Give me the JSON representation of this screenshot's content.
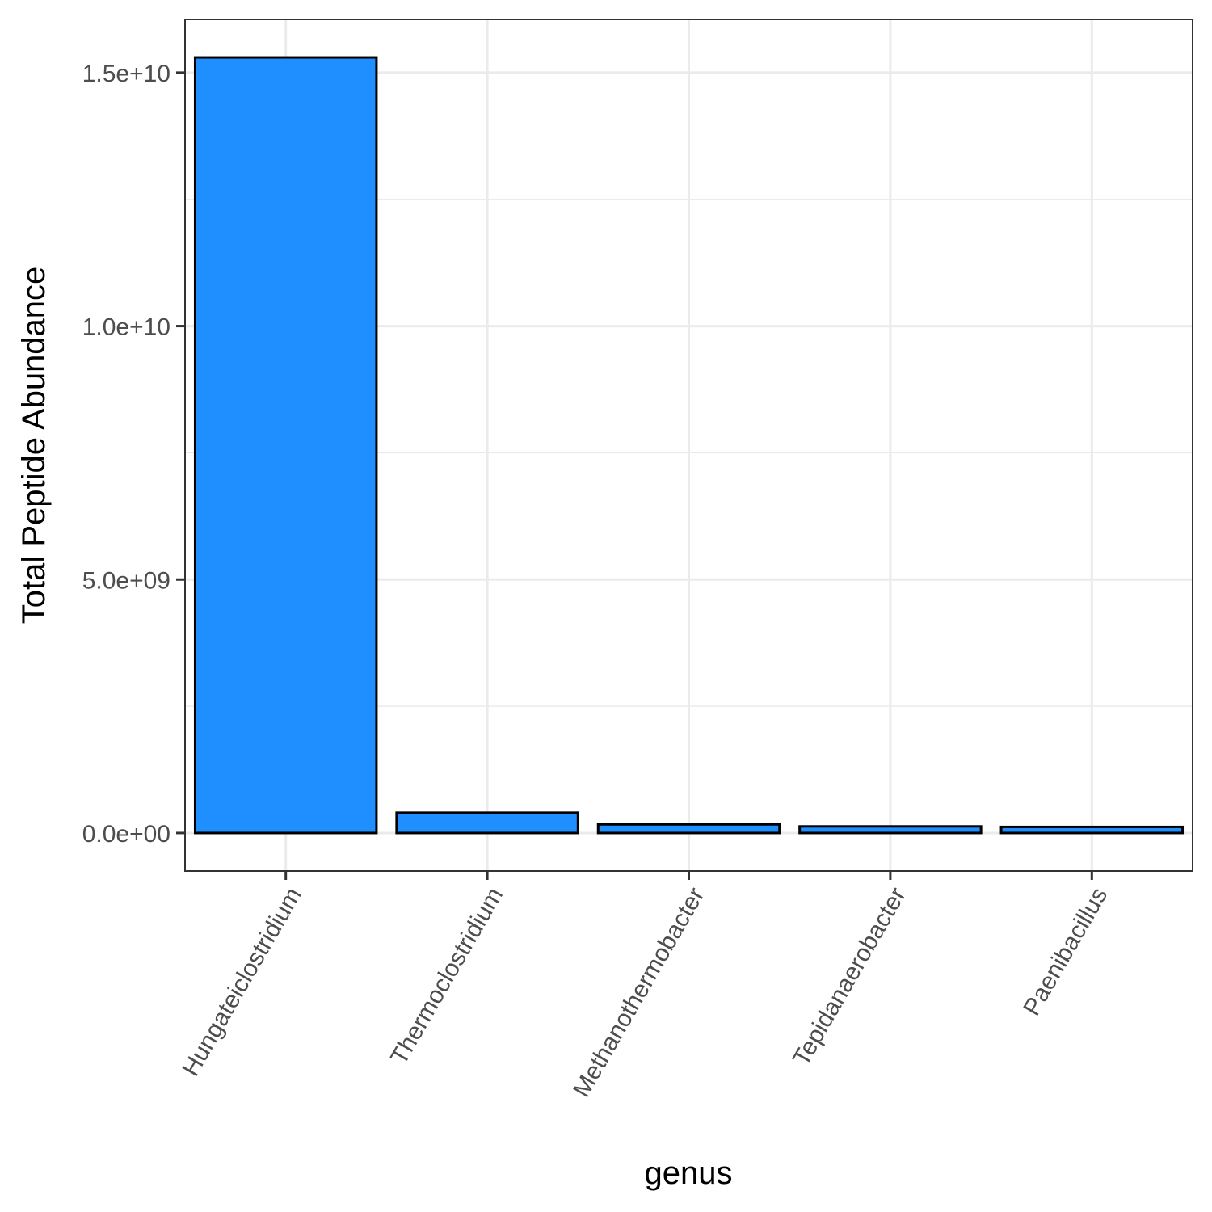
{
  "chart_data": {
    "type": "bar",
    "title": "",
    "xlabel": "genus",
    "ylabel": "Total Peptide Abundance",
    "categories": [
      "Hungateiclostridium",
      "Thermoclostridium",
      "Methanothermobacter",
      "Tepidanaerobacter",
      "Paenibacillus"
    ],
    "values": [
      15300000000,
      400000000,
      170000000,
      130000000,
      120000000
    ],
    "ylim": [
      -750000000,
      16050000000
    ],
    "yticks": [
      0,
      5000000000,
      10000000000,
      15000000000
    ],
    "ytick_labels": [
      "0.0e+00",
      "5.0e+09",
      "1.0e+10",
      "1.5e+10"
    ],
    "grid": true,
    "legend": "none",
    "colors": {
      "bar_fill": "#1f8fff",
      "bar_stroke": "#000000",
      "grid": "#ebebeb",
      "panel_border": "#333333"
    }
  }
}
